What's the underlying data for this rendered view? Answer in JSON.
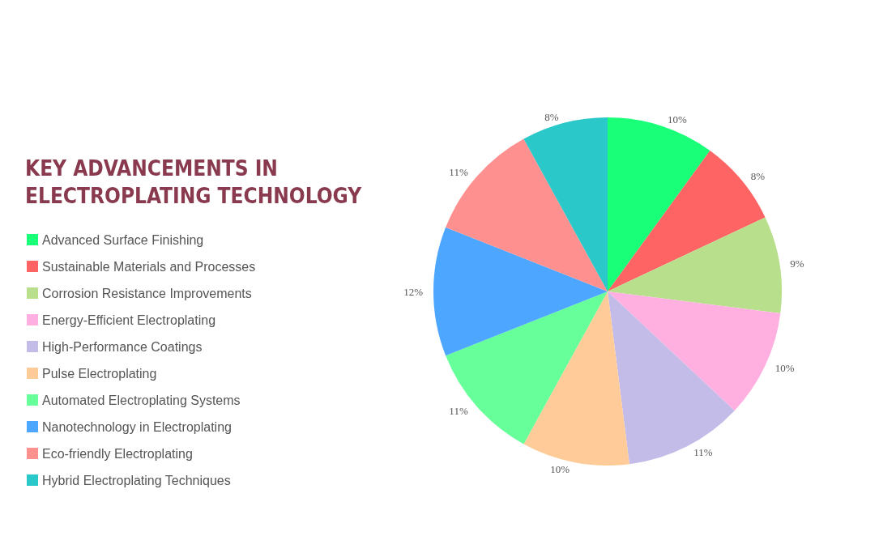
{
  "chart_data": {
    "type": "pie",
    "title": "KEY ADVANCEMENTS IN ELECTROPLATING TECHNOLOGY",
    "categories": [
      "Advanced Surface Finishing",
      "Sustainable Materials and Processes",
      "Corrosion Resistance Improvements",
      "Energy-Efficient Electroplating",
      "High-Performance Coatings",
      "Pulse Electroplating",
      "Automated Electroplating Systems",
      "Nanotechnology in Electroplating",
      "Eco-friendly Electroplating",
      "Hybrid Electroplating Techniques"
    ],
    "values": [
      10,
      8,
      9,
      10,
      11,
      10,
      11,
      12,
      11,
      8
    ],
    "value_labels": [
      "10%",
      "8%",
      "9%",
      "10%",
      "11%",
      "10%",
      "11%",
      "12%",
      "11%",
      "8%"
    ],
    "colors": [
      "#1aff78",
      "#ff6464",
      "#b8e08c",
      "#ffb0e0",
      "#c4bce8",
      "#ffcc99",
      "#66ff99",
      "#4da6ff",
      "#ff9090",
      "#2ac8c8"
    ],
    "legend": "left"
  }
}
